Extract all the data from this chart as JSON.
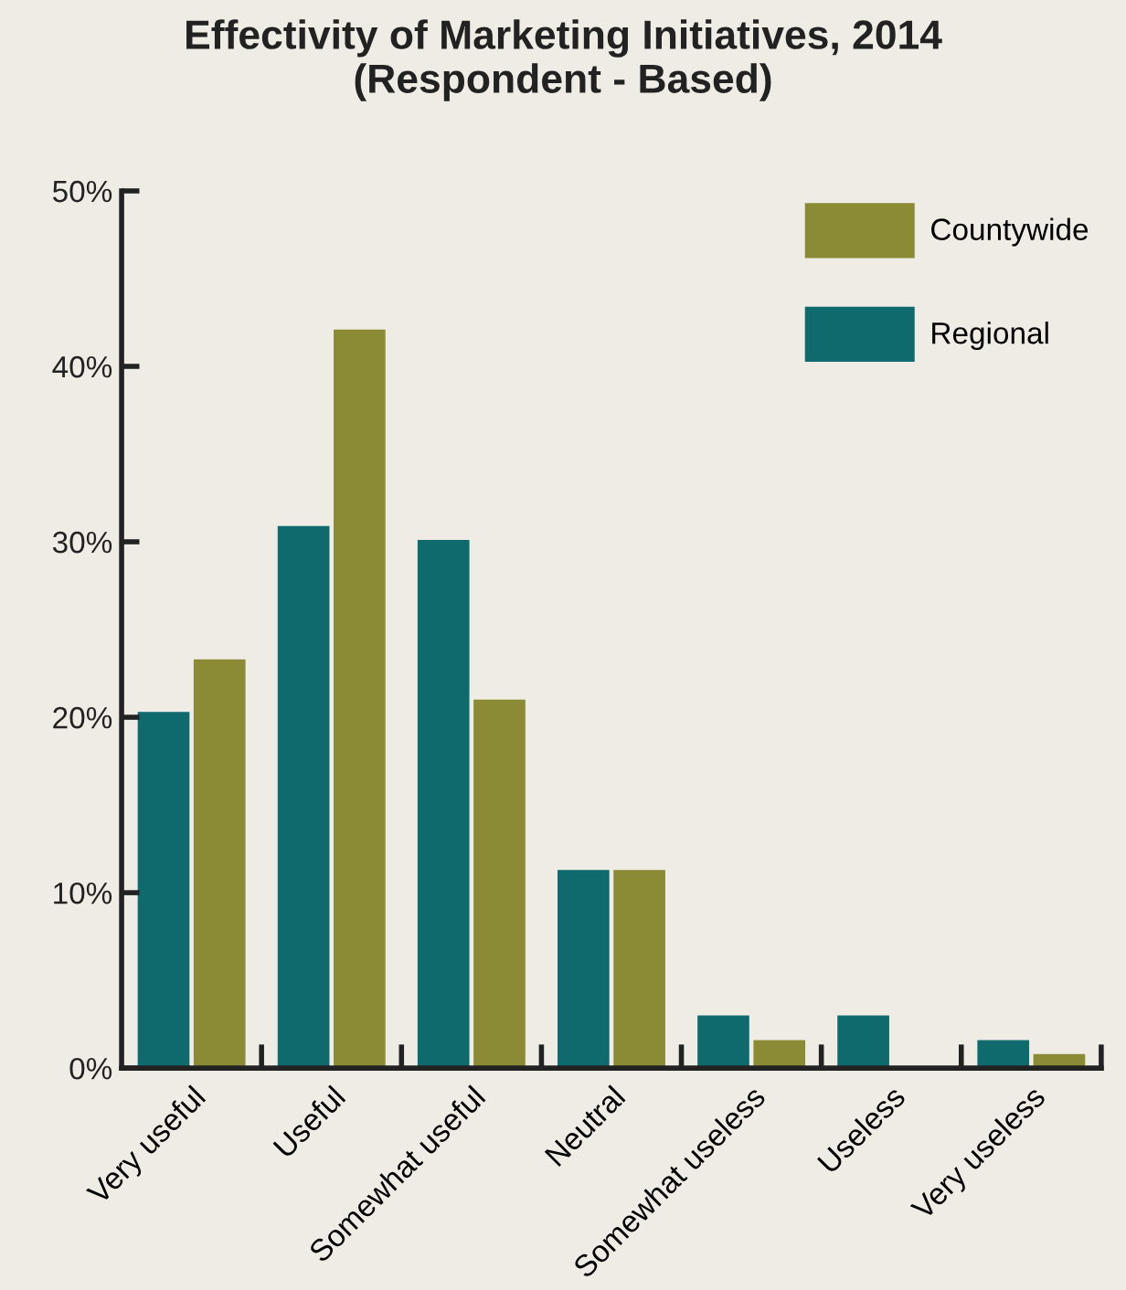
{
  "chart_data": {
    "type": "bar",
    "title": "Effectivity of Marketing Initiatives, 2014\n(Respondent - Based)",
    "categories": [
      "Very useful",
      "Useful",
      "Somewhat useful",
      "Neutral",
      "Somewhat useless",
      "Useless",
      "Very useless"
    ],
    "series": [
      {
        "name": "Regional",
        "color": "#0f6a6e",
        "values": [
          20.3,
          30.9,
          30.1,
          11.3,
          3.0,
          3.0,
          1.6
        ]
      },
      {
        "name": "Countywide",
        "color": "#8c8b35",
        "values": [
          23.3,
          42.1,
          21.0,
          11.3,
          1.6,
          0,
          0.8
        ]
      }
    ],
    "ylim": [
      0,
      50
    ],
    "yticks": [
      {
        "value": 0,
        "label": "0%"
      },
      {
        "value": 10,
        "label": "10%"
      },
      {
        "value": 20,
        "label": "20%"
      },
      {
        "value": 30,
        "label": "30%"
      },
      {
        "value": 40,
        "label": "40%"
      },
      {
        "value": 50,
        "label": "50%"
      }
    ],
    "grid": false,
    "legend": "top right"
  }
}
